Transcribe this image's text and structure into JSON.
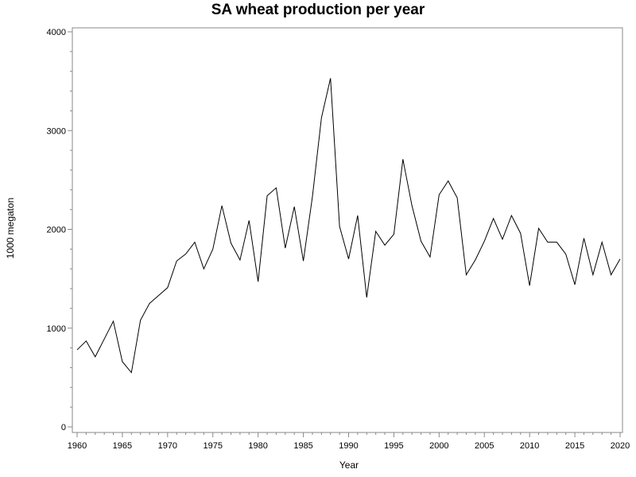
{
  "chart_data": {
    "type": "line",
    "title": "SA wheat production per year",
    "xlabel": "Year",
    "ylabel": "1000 megaton",
    "xlim": [
      1960,
      2020
    ],
    "ylim": [
      0,
      4000
    ],
    "x_ticks": [
      1960,
      1965,
      1970,
      1975,
      1980,
      1985,
      1990,
      1995,
      2000,
      2005,
      2010,
      2015,
      2020
    ],
    "y_ticks": [
      0,
      1000,
      2000,
      3000,
      4000
    ],
    "x_tick_labels": [
      "1960",
      "1965",
      "1970",
      "1975",
      "1980",
      "1985",
      "1990",
      "1995",
      "2000",
      "2005",
      "2010",
      "2015",
      "2020"
    ],
    "y_tick_labels": [
      "0",
      "1000",
      "2000",
      "3000",
      "4000"
    ],
    "grid": false,
    "line_color": "#000000",
    "x": [
      1960,
      1961,
      1962,
      1963,
      1964,
      1965,
      1966,
      1967,
      1968,
      1969,
      1970,
      1971,
      1972,
      1973,
      1974,
      1975,
      1976,
      1977,
      1978,
      1979,
      1980,
      1981,
      1982,
      1983,
      1984,
      1985,
      1986,
      1987,
      1988,
      1989,
      1990,
      1991,
      1992,
      1993,
      1994,
      1995,
      1996,
      1997,
      1998,
      1999,
      2000,
      2001,
      2002,
      2003,
      2004,
      2005,
      2006,
      2007,
      2008,
      2009,
      2010,
      2011,
      2012,
      2013,
      2014,
      2015,
      2016,
      2017,
      2018,
      2019,
      2020
    ],
    "y": [
      780,
      870,
      710,
      890,
      1070,
      660,
      550,
      1080,
      1250,
      1330,
      1410,
      1680,
      1750,
      1870,
      1600,
      1800,
      2240,
      1860,
      1690,
      2090,
      1470,
      2340,
      2420,
      1810,
      2230,
      1680,
      2330,
      3130,
      3530,
      2030,
      1700,
      2140,
      1310,
      1980,
      1840,
      1950,
      2710,
      2240,
      1880,
      1720,
      2350,
      2490,
      2320,
      1540,
      1690,
      1880,
      2110,
      1900,
      2140,
      1960,
      1430,
      2010,
      1870,
      1870,
      1750,
      1440,
      1910,
      1540,
      1870,
      1540,
      1700
    ]
  }
}
